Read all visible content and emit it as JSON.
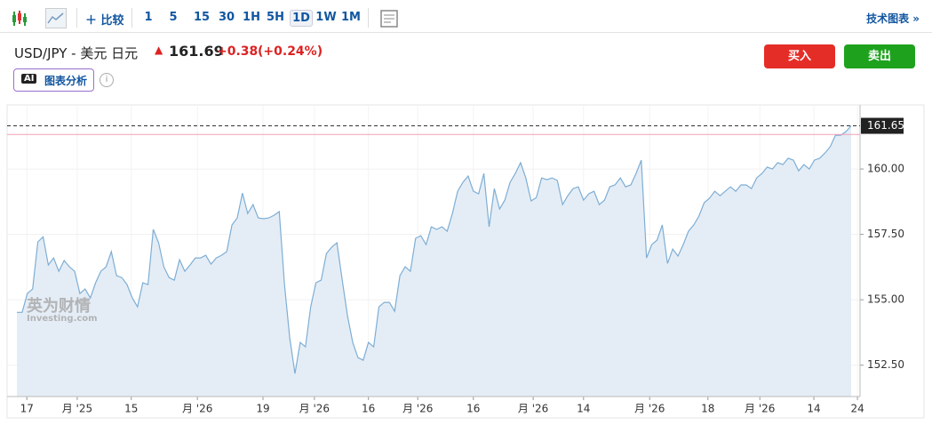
{
  "toolbar": {
    "compare": "比较",
    "intervals": [
      "1",
      "5",
      "15",
      "30",
      "1H",
      "5H",
      "1D",
      "1W",
      "1M"
    ],
    "active_interval": "1D",
    "advanced_chart": "技术图表 »"
  },
  "header": {
    "symbol": "USD/JPY - 美元 日元",
    "price": "161.69",
    "change": "+0.38",
    "change_percent": "(+0.24%)",
    "buy": "买入",
    "sell": "卖出",
    "ai_badge": "AI",
    "ai_button": "图表分析",
    "info": "i"
  },
  "watermark": {
    "brand": "英为财情",
    "site": "Investing.com"
  },
  "chart_data": {
    "type": "area",
    "color": "#7eaed4",
    "fill": "#e4edf6",
    "values": [
      154.52,
      154.52,
      155.24,
      155.41,
      157.21,
      157.41,
      156.33,
      156.6,
      156.09,
      156.5,
      156.26,
      156.09,
      155.24,
      155.41,
      155.07,
      155.65,
      156.09,
      156.26,
      156.84,
      155.92,
      155.85,
      155.58,
      155.07,
      154.73,
      155.65,
      155.58,
      157.69,
      157.18,
      156.26,
      155.85,
      155.75,
      156.53,
      156.09,
      156.33,
      156.6,
      156.6,
      156.7,
      156.36,
      156.6,
      156.7,
      156.84,
      157.86,
      158.13,
      159.08,
      158.3,
      158.64,
      158.13,
      158.1,
      158.13,
      158.23,
      158.37,
      155.58,
      153.54,
      152.18,
      153.37,
      153.2,
      154.73,
      155.65,
      155.75,
      156.77,
      157.01,
      157.18,
      155.75,
      154.39,
      153.37,
      152.79,
      152.69,
      153.37,
      153.2,
      154.73,
      154.9,
      154.9,
      154.56,
      155.92,
      156.26,
      156.09,
      157.35,
      157.45,
      157.11,
      157.79,
      157.69,
      157.79,
      157.62,
      158.3,
      159.15,
      159.49,
      159.73,
      159.15,
      159.05,
      159.83,
      157.79,
      159.25,
      158.47,
      158.81,
      159.49,
      159.83,
      160.24,
      159.66,
      158.78,
      158.91,
      159.66,
      159.59,
      159.66,
      159.56,
      158.64,
      158.98,
      159.25,
      159.32,
      158.81,
      159.05,
      159.15,
      158.64,
      158.81,
      159.32,
      159.39,
      159.66,
      159.32,
      159.39,
      159.83,
      160.34,
      156.6,
      157.11,
      157.28,
      157.86,
      156.39,
      156.94,
      156.67,
      157.11,
      157.62,
      157.86,
      158.2,
      158.71,
      158.88,
      159.15,
      158.98,
      159.15,
      159.32,
      159.15,
      159.39,
      159.39,
      159.25,
      159.66,
      159.83,
      160.07,
      160.0,
      160.24,
      160.17,
      160.41,
      160.34,
      159.93,
      160.17,
      160.0,
      160.34,
      160.41,
      160.61,
      160.85,
      161.29,
      161.29,
      161.43,
      161.65
    ],
    "xlim": [
      0,
      159
    ],
    "xticks": [
      {
        "value": 1.9,
        "label": "17"
      },
      {
        "value": 11.5,
        "label": "月 '25"
      },
      {
        "value": 21.8,
        "label": "15"
      },
      {
        "value": 34.4,
        "label": "月 '26"
      },
      {
        "value": 46.9,
        "label": "19"
      },
      {
        "value": 56.7,
        "label": "月 '26"
      },
      {
        "value": 67.0,
        "label": "16"
      },
      {
        "value": 76.4,
        "label": "月 '26"
      },
      {
        "value": 87.0,
        "label": "16"
      },
      {
        "value": 98.4,
        "label": "月 '26"
      },
      {
        "value": 108.0,
        "label": "14"
      },
      {
        "value": 120.6,
        "label": "月 '26"
      },
      {
        "value": 131.7,
        "label": "18"
      },
      {
        "value": 141.6,
        "label": "月 '26"
      },
      {
        "value": 151.9,
        "label": "14"
      },
      {
        "value": 160.2,
        "label": "24"
      }
    ],
    "ylim": [
      151.3,
      162.45
    ],
    "yticks": [
      {
        "value": 152.5,
        "label": "152.50"
      },
      {
        "value": 155,
        "label": "155.00"
      },
      {
        "value": 157.5,
        "label": "157.50"
      },
      {
        "value": 160,
        "label": "160.00"
      }
    ],
    "grid": true,
    "last_price": 161.65,
    "reference_price": 161.32
  }
}
